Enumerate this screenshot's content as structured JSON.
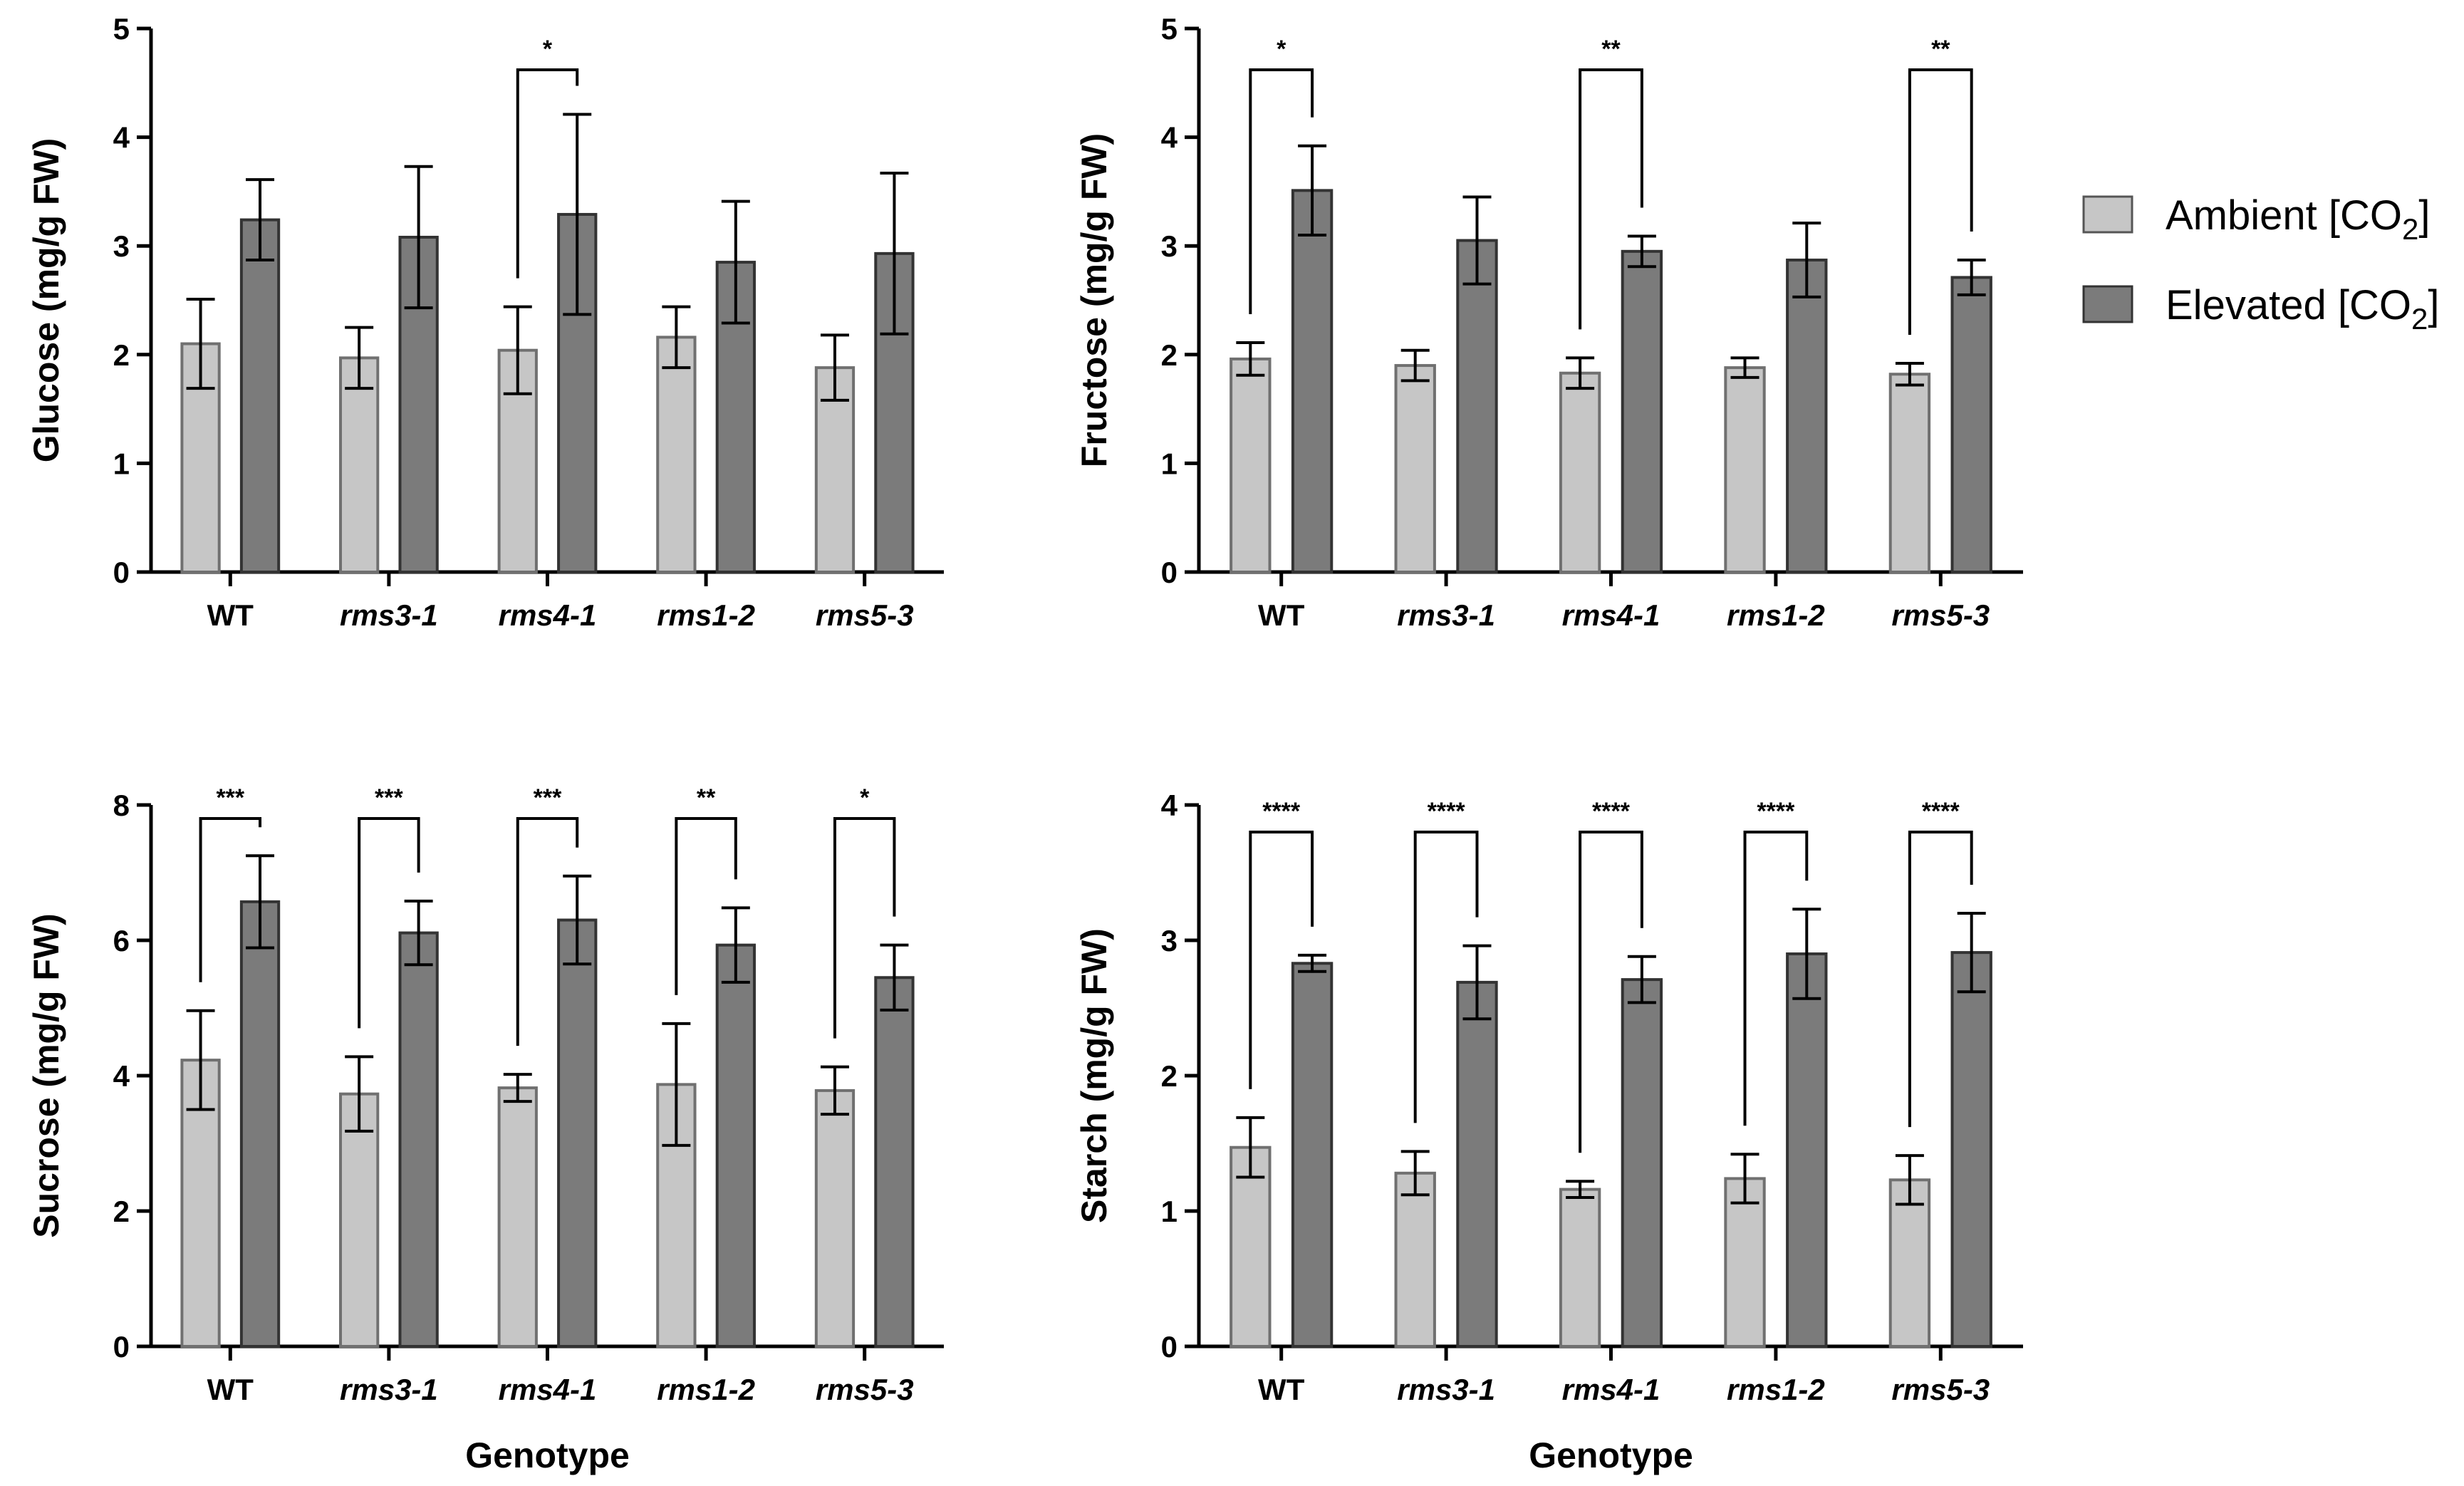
{
  "legend": {
    "ambient_prefix": "Ambient [CO",
    "ambient_sub": "2",
    "ambient_suffix": "]",
    "elevated_prefix": "Elevated [CO",
    "elevated_sub": "2",
    "elevated_suffix": "]",
    "ambient_color": "#c6c6c6",
    "elevated_color": "#7b7b7b",
    "position": "right"
  },
  "chart_data": [
    {
      "type": "bar",
      "ylabel": "Glucose (mg/g FW)",
      "xlabel": "",
      "categories": [
        "WT",
        "rms3-1",
        "rms4-1",
        "rms1-2",
        "rms5-3"
      ],
      "ylim": [
        0,
        5
      ],
      "yticks": [
        "0",
        "1",
        "2",
        "3",
        "4",
        "5"
      ],
      "series": [
        {
          "name": "Ambient [CO2]",
          "values": [
            2.1,
            1.97,
            2.04,
            2.16,
            1.88
          ],
          "errors": [
            0.41,
            0.28,
            0.4,
            0.28,
            0.3
          ]
        },
        {
          "name": "Elevated [CO2]",
          "values": [
            3.24,
            3.08,
            3.29,
            2.85,
            2.93
          ],
          "errors": [
            0.37,
            0.65,
            0.92,
            0.56,
            0.74
          ]
        }
      ],
      "significance": [
        "",
        "",
        "*",
        "",
        ""
      ]
    },
    {
      "type": "bar",
      "ylabel": "Fructose (mg/g FW)",
      "xlabel": "",
      "categories": [
        "WT",
        "rms3-1",
        "rms4-1",
        "rms1-2",
        "rms5-3"
      ],
      "ylim": [
        0,
        5
      ],
      "yticks": [
        "0",
        "1",
        "2",
        "3",
        "4",
        "5"
      ],
      "series": [
        {
          "name": "Ambient [CO2]",
          "values": [
            1.96,
            1.9,
            1.83,
            1.88,
            1.82
          ],
          "errors": [
            0.15,
            0.14,
            0.14,
            0.09,
            0.1
          ]
        },
        {
          "name": "Elevated [CO2]",
          "values": [
            3.51,
            3.05,
            2.95,
            2.87,
            2.71
          ],
          "errors": [
            0.41,
            0.4,
            0.14,
            0.34,
            0.16
          ]
        }
      ],
      "significance": [
        "*",
        "",
        "**",
        "",
        "**"
      ]
    },
    {
      "type": "bar",
      "ylabel": "Sucrose (mg/g FW)",
      "xlabel": "Genotype",
      "categories": [
        "WT",
        "rms3-1",
        "rms4-1",
        "rms1-2",
        "rms5-3"
      ],
      "ylim": [
        0,
        8
      ],
      "yticks": [
        "0",
        "2",
        "4",
        "6",
        "8"
      ],
      "series": [
        {
          "name": "Ambient [CO2]",
          "values": [
            4.23,
            3.73,
            3.82,
            3.87,
            3.78
          ],
          "errors": [
            0.73,
            0.55,
            0.2,
            0.9,
            0.35
          ]
        },
        {
          "name": "Elevated [CO2]",
          "values": [
            6.57,
            6.11,
            6.3,
            5.93,
            5.45
          ],
          "errors": [
            0.68,
            0.47,
            0.65,
            0.55,
            0.48
          ]
        }
      ],
      "significance": [
        "***",
        "***",
        "***",
        "**",
        "*"
      ]
    },
    {
      "type": "bar",
      "ylabel": "Starch (mg/g FW)",
      "xlabel": "Genotype",
      "categories": [
        "WT",
        "rms3-1",
        "rms4-1",
        "rms1-2",
        "rms5-3"
      ],
      "ylim": [
        0,
        4
      ],
      "yticks": [
        "0",
        "1",
        "2",
        "3",
        "4"
      ],
      "series": [
        {
          "name": "Ambient [CO2]",
          "values": [
            1.47,
            1.28,
            1.16,
            1.24,
            1.23
          ],
          "errors": [
            0.22,
            0.16,
            0.06,
            0.18,
            0.18
          ]
        },
        {
          "name": "Elevated [CO2]",
          "values": [
            2.83,
            2.69,
            2.71,
            2.9,
            2.91
          ],
          "errors": [
            0.06,
            0.27,
            0.17,
            0.33,
            0.29
          ]
        }
      ],
      "significance": [
        "****",
        "****",
        "****",
        "****",
        "****"
      ]
    }
  ]
}
